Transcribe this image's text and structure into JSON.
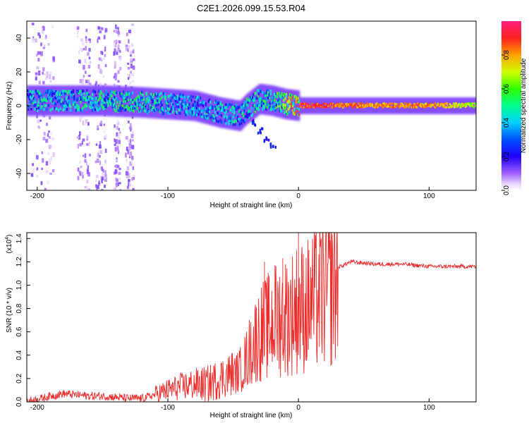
{
  "title": "C2E1.2026.099.15.53.R04",
  "chart_data": [
    {
      "type": "heatmap",
      "title": "C2E1.2026.099.15.53.R04",
      "xlabel": "Height of straight line (km)",
      "ylabel": "Frequency (Hz)",
      "xlim": [
        -208,
        136
      ],
      "ylim": [
        -50,
        50
      ],
      "xticks": [
        -200,
        -100,
        0,
        100
      ],
      "xtick_labels": [
        "-200",
        "-100",
        "0",
        "100"
      ],
      "yticks": [
        -40,
        -20,
        0,
        20,
        40
      ],
      "ytick_labels": [
        "-40",
        "-20",
        "0",
        "20",
        "40"
      ],
      "ridge": {
        "description_x": [
          -208,
          -180,
          -150,
          -120,
          -100,
          -80,
          -60,
          -45,
          -40,
          -30,
          -20,
          -10,
          0,
          50,
          100,
          136
        ],
        "center_freq_hz": [
          3,
          3,
          3,
          2,
          1,
          0,
          -4,
          -6,
          -2,
          4,
          3,
          1,
          0,
          0,
          0,
          0
        ],
        "peak_amplitude": [
          0.45,
          0.45,
          0.5,
          0.5,
          0.45,
          0.4,
          0.45,
          0.45,
          0.5,
          0.55,
          0.5,
          0.7,
          0.95,
          0.85,
          0.85,
          0.7
        ]
      },
      "descending_branch": {
        "x": [
          -40,
          -35,
          -30,
          -25,
          -20
        ],
        "freq_hz": [
          -6,
          -10,
          -15,
          -20,
          -24
        ]
      },
      "colorbar": {
        "label": "Normalized spectral amplitude",
        "min": 0.0,
        "max": 1.0,
        "ticks": [
          0.0,
          0.2,
          0.4,
          0.6,
          0.8
        ],
        "tick_labels": [
          "0.0",
          "0.2",
          "0.4",
          "0.6",
          "0.8"
        ]
      }
    },
    {
      "type": "line",
      "title": "",
      "xlabel": "Height of straight line (km)",
      "ylabel": "SNR (10 * v/v)",
      "scale_label": "(x10",
      "scale_exp": "4",
      "scale_close": ")",
      "xlim": [
        -208,
        136
      ],
      "ylim": [
        0.0,
        1.45
      ],
      "xticks": [
        -200,
        -100,
        0,
        100
      ],
      "xtick_labels": [
        "-200",
        "-100",
        "0",
        "100"
      ],
      "yticks": [
        0.0,
        0.2,
        0.4,
        0.6,
        0.8,
        1.0,
        1.2,
        1.4
      ],
      "ytick_labels": [
        "0.0",
        "0.2",
        "0.4",
        "0.6",
        "0.8",
        "1.0",
        "1.2",
        "1.4"
      ],
      "series": [
        {
          "name": "SNR",
          "color": "#ee2b2b",
          "x": [
            -208,
            -200,
            -190,
            -180,
            -170,
            -160,
            -150,
            -140,
            -130,
            -120,
            -110,
            -100,
            -90,
            -80,
            -70,
            -60,
            -50,
            -45,
            -40,
            -35,
            -30,
            -25,
            -20,
            -15,
            -10,
            -5,
            0,
            5,
            10,
            20,
            30,
            40,
            50,
            60,
            70,
            80,
            90,
            100,
            110,
            120,
            136
          ],
          "y": [
            0.01,
            0.02,
            0.05,
            0.07,
            0.06,
            0.05,
            0.05,
            0.04,
            0.03,
            0.03,
            0.06,
            0.1,
            0.13,
            0.15,
            0.15,
            0.2,
            0.25,
            0.3,
            0.4,
            0.55,
            0.65,
            0.7,
            0.75,
            0.8,
            0.82,
            0.85,
            0.9,
            0.9,
            0.95,
            1.05,
            1.15,
            1.2,
            1.19,
            1.18,
            1.18,
            1.18,
            1.17,
            1.16,
            1.16,
            1.16,
            1.16
          ]
        }
      ],
      "spikes": [
        {
          "x": 0,
          "y": 1.45
        },
        {
          "x": -26,
          "y": 1.2
        },
        {
          "x": -18,
          "y": 1.17
        },
        {
          "x": -12,
          "y": 1.23
        }
      ]
    }
  ]
}
